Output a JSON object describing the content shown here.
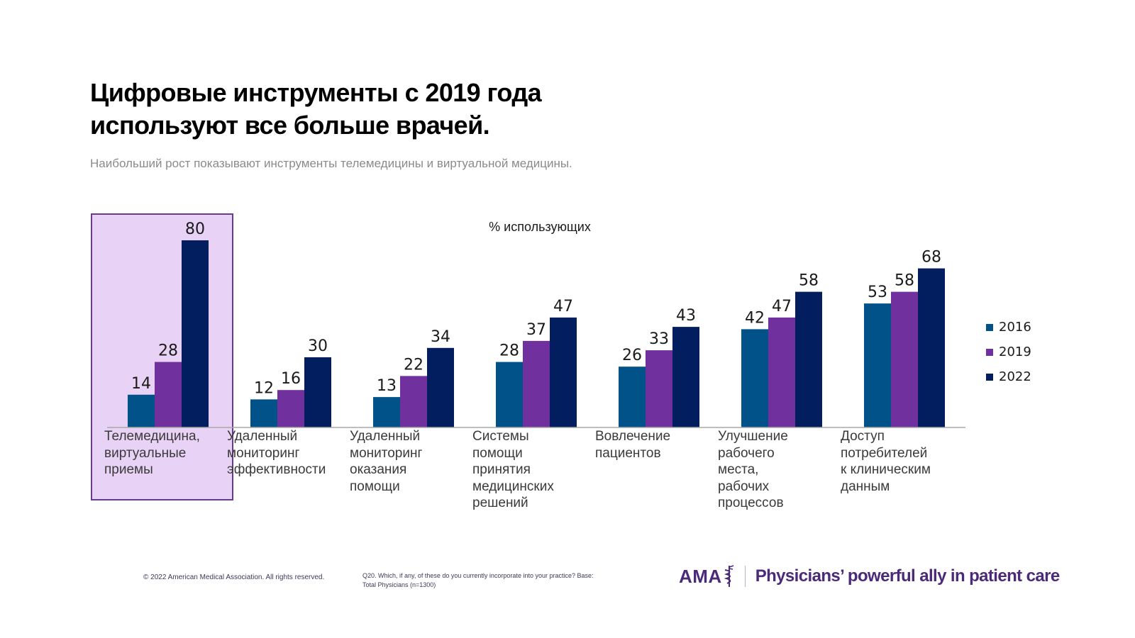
{
  "header": {
    "title_line1": "Цифровые инструменты с 2019 года",
    "title_line2": "используют все больше врачей.",
    "subtitle": "Наибольший рост показывают инструменты телемедицины и виртуальной медицины."
  },
  "chart_data": {
    "type": "bar",
    "title": "",
    "ylabel": "% использующих",
    "xlabel": "",
    "ylim": [
      0,
      80
    ],
    "grid": false,
    "legend_position": "right",
    "highlighted_category_index": 0,
    "categories": [
      "Телемедицина, виртуальные приемы",
      "Удаленный мониторинг эффективности",
      "Удаленный мониторинг оказания помощи",
      "Системы помощи принятия медицинских решений",
      "Вовлечение пациентов",
      "Улучшение рабочего места, рабочих процессов",
      "Доступ потребителей к клиническим данным"
    ],
    "category_lines": [
      [
        "Телемедицина,",
        "виртуальные",
        "приемы"
      ],
      [
        "Удаленный",
        "мониторинг",
        "эффективности"
      ],
      [
        "Удаленный",
        "мониторинг",
        "оказания",
        "помощи"
      ],
      [
        "Системы",
        "помощи",
        "принятия",
        "медицинских",
        "решений"
      ],
      [
        "Вовлечение",
        "пациентов"
      ],
      [
        "Улучшение",
        "рабочего",
        "места,",
        "рабочих",
        "процессов"
      ],
      [
        "Доступ",
        "потребителей",
        "к клиническим",
        "данным"
      ]
    ],
    "series": [
      {
        "name": "2016",
        "color": "#02528a",
        "values": [
          14,
          12,
          13,
          28,
          26,
          42,
          53
        ]
      },
      {
        "name": "2019",
        "color": "#70309e",
        "values": [
          28,
          16,
          22,
          37,
          33,
          47,
          58
        ]
      },
      {
        "name": "2022",
        "color": "#021e5e",
        "values": [
          80,
          30,
          34,
          47,
          43,
          58,
          68
        ]
      }
    ],
    "highlight_colors": {
      "fill": "#e8d2f5",
      "border": "#6a3a8e"
    }
  },
  "footer": {
    "copyright": "© 2022 American Medical Association.  All rights reserved.",
    "note_line1": "Q20. Which, if any, of these do you currently incorporate into your practice? Base:",
    "note_line2": "Total Physicians (n=1300)",
    "logo_text": "AMA",
    "tagline": "Physicians’ powerful ally in patient care",
    "brand_color": "#4b2a7a"
  }
}
